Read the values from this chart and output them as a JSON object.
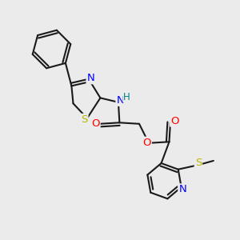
{
  "bg_color": "#ebebeb",
  "bond_color": "#1a1a1a",
  "bond_width": 1.5,
  "dbo": 0.012,
  "atom_colors": {
    "N": "#0000ff",
    "O": "#ff0000",
    "S": "#b8b800",
    "H": "#008080",
    "C": "#1a1a1a"
  },
  "font_size": 8.5
}
